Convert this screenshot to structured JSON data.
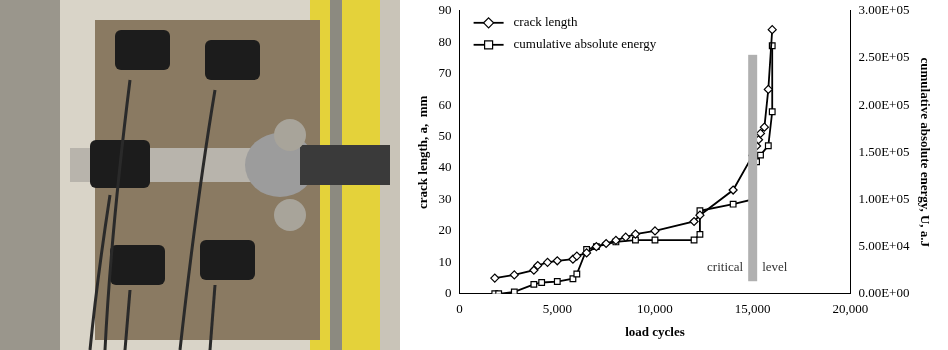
{
  "chart_data": {
    "type": "line",
    "x_label": "load cycles",
    "y_label": "crack length, a,  mm",
    "y2_label": "cumulative absolute energy, U, a.J",
    "xlim": [
      0,
      20000
    ],
    "xticks": [
      0,
      {
        "value": 5000,
        "label": "5,000"
      },
      {
        "value": 10000,
        "label": "10,000"
      },
      {
        "value": 15000,
        "label": "15,000"
      },
      {
        "value": 20000,
        "label": "20,000"
      }
    ],
    "ylim": [
      0,
      90
    ],
    "yticks": [
      0,
      10,
      20,
      30,
      40,
      50,
      60,
      70,
      80,
      90
    ],
    "y2lim": [
      0,
      300000
    ],
    "y2ticks": [
      {
        "value": 0,
        "label": "0.00E+00"
      },
      {
        "value": 50000,
        "label": "5.00E+04"
      },
      {
        "value": 100000,
        "label": "1.00E+05"
      },
      {
        "value": 150000,
        "label": "1.50E+05"
      },
      {
        "value": 200000,
        "label": "2.00E+05"
      },
      {
        "value": 250000,
        "label": "2.50E+05"
      },
      {
        "value": 300000,
        "label": "3.00E+05"
      }
    ],
    "grid": false,
    "legend": "upper left",
    "series": [
      {
        "name": "crack length",
        "color": "#000000",
        "marker": "diamond",
        "line_style": "solid",
        "x": [
          1800,
          2800,
          3800,
          4000,
          4500,
          5000,
          5800,
          6000,
          6500,
          7000,
          7500,
          8000,
          8500,
          9000,
          10000,
          12000,
          12300,
          14000,
          15000,
          15200,
          15300,
          15400,
          15600,
          15800,
          16000
        ],
        "values": [
          5,
          6,
          7.5,
          9,
          10,
          10.5,
          11,
          12,
          13,
          15,
          16,
          17,
          18,
          19,
          20,
          23,
          25,
          33,
          44,
          47,
          49,
          51,
          53,
          65,
          84
        ]
      },
      {
        "name": "cumulative absolute energy",
        "color": "#000000",
        "marker": "square",
        "line_style": "solid",
        "axis": "y2",
        "x": [
          1800,
          2000,
          2800,
          3800,
          4200,
          5000,
          5800,
          6000,
          6500,
          7000,
          8000,
          9000,
          10000,
          12000,
          12300,
          12300,
          14000,
          15000,
          15200,
          15400,
          15800,
          16000,
          16000
        ],
        "values": [
          0,
          0,
          2000,
          10000,
          12000,
          13000,
          16000,
          21000,
          47000,
          50000,
          55000,
          57000,
          57000,
          57000,
          63000,
          88000,
          95000,
          100000,
          140000,
          147000,
          157000,
          193000,
          263000
        ]
      }
    ],
    "annotations": [
      {
        "text": "critical level",
        "x": 15000,
        "y": [
          4,
          76
        ],
        "color": "#b0b0b0"
      }
    ]
  }
}
